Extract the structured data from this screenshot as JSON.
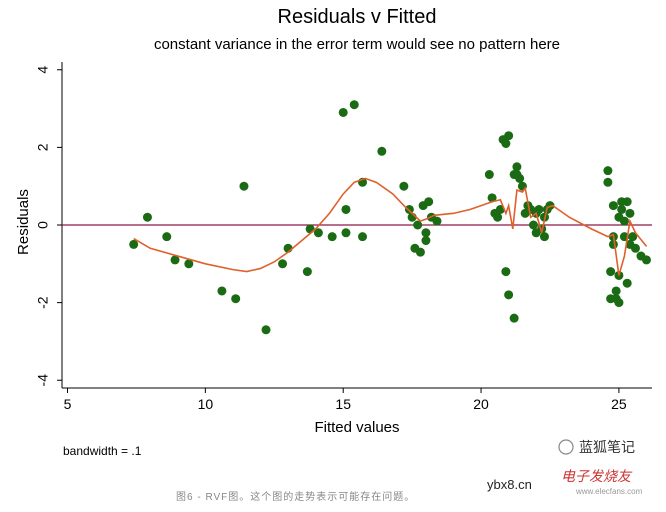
{
  "chart_data": {
    "type": "scatter",
    "title": "Residuals v Fitted",
    "subtitle": "constant variance in the error term would see no pattern here",
    "xlabel": "Fitted values",
    "ylabel": "Residuals",
    "xlim": [
      4.8,
      26.2
    ],
    "ylim": [
      -4.2,
      4.2
    ],
    "xticks": [
      "5",
      "10",
      "15",
      "20",
      "25"
    ],
    "xtick_values": [
      5,
      10,
      15,
      20,
      25
    ],
    "yticks": [
      "-4",
      "-2",
      "0",
      "2",
      "4"
    ],
    "ytick_values": [
      -4,
      -2,
      0,
      2,
      4
    ],
    "reference_line": {
      "y": 0,
      "color": "#8b1a4a"
    },
    "point_color": "#1a6b14",
    "smooth_color": "#e0602a",
    "points": [
      [
        7.4,
        -0.5
      ],
      [
        7.9,
        0.2
      ],
      [
        8.6,
        -0.3
      ],
      [
        8.9,
        -0.9
      ],
      [
        9.4,
        -1.0
      ],
      [
        10.6,
        -1.7
      ],
      [
        11.1,
        -1.9
      ],
      [
        11.4,
        1.0
      ],
      [
        12.2,
        -2.7
      ],
      [
        12.8,
        -1.0
      ],
      [
        13.0,
        -0.6
      ],
      [
        13.7,
        -1.2
      ],
      [
        13.8,
        -0.1
      ],
      [
        14.1,
        -0.2
      ],
      [
        14.6,
        -0.3
      ],
      [
        15.0,
        2.9
      ],
      [
        15.1,
        0.4
      ],
      [
        15.1,
        -0.2
      ],
      [
        15.4,
        3.1
      ],
      [
        15.7,
        1.1
      ],
      [
        15.7,
        -0.3
      ],
      [
        16.4,
        1.9
      ],
      [
        17.2,
        1.0
      ],
      [
        17.4,
        0.4
      ],
      [
        17.5,
        0.2
      ],
      [
        17.6,
        -0.6
      ],
      [
        17.7,
        0.0
      ],
      [
        17.8,
        -0.7
      ],
      [
        17.9,
        0.5
      ],
      [
        18.0,
        -0.2
      ],
      [
        18.0,
        -0.4
      ],
      [
        18.1,
        0.6
      ],
      [
        18.2,
        0.2
      ],
      [
        18.4,
        0.1
      ],
      [
        20.3,
        1.3
      ],
      [
        20.4,
        0.7
      ],
      [
        20.5,
        0.3
      ],
      [
        20.6,
        0.2
      ],
      [
        20.7,
        0.4
      ],
      [
        20.8,
        2.2
      ],
      [
        20.9,
        2.1
      ],
      [
        20.9,
        -1.2
      ],
      [
        21.0,
        2.3
      ],
      [
        21.0,
        -1.8
      ],
      [
        21.2,
        -2.4
      ],
      [
        21.2,
        1.3
      ],
      [
        21.3,
        1.5
      ],
      [
        21.3,
        1.3
      ],
      [
        21.4,
        1.2
      ],
      [
        21.5,
        1.0
      ],
      [
        21.6,
        0.3
      ],
      [
        21.7,
        0.5
      ],
      [
        21.8,
        0.4
      ],
      [
        21.9,
        0.0
      ],
      [
        22.0,
        -0.2
      ],
      [
        22.0,
        0.3
      ],
      [
        22.1,
        0.4
      ],
      [
        22.2,
        -0.1
      ],
      [
        22.3,
        -0.3
      ],
      [
        22.3,
        0.2
      ],
      [
        22.4,
        0.4
      ],
      [
        22.5,
        0.5
      ],
      [
        24.6,
        1.4
      ],
      [
        24.6,
        1.1
      ],
      [
        24.7,
        -1.2
      ],
      [
        24.7,
        -1.9
      ],
      [
        24.8,
        -0.5
      ],
      [
        24.8,
        -0.3
      ],
      [
        24.8,
        0.5
      ],
      [
        24.9,
        -1.7
      ],
      [
        24.9,
        -1.9
      ],
      [
        25.0,
        -1.3
      ],
      [
        25.0,
        -2.0
      ],
      [
        25.0,
        0.2
      ],
      [
        25.1,
        0.6
      ],
      [
        25.1,
        0.4
      ],
      [
        25.2,
        -0.3
      ],
      [
        25.2,
        0.1
      ],
      [
        25.3,
        -1.5
      ],
      [
        25.3,
        0.6
      ],
      [
        25.4,
        -0.5
      ],
      [
        25.4,
        0.3
      ],
      [
        25.5,
        -0.3
      ],
      [
        25.6,
        -0.6
      ],
      [
        25.8,
        -0.8
      ],
      [
        26.0,
        -0.9
      ]
    ],
    "smooth": [
      [
        7.4,
        -0.35
      ],
      [
        8.0,
        -0.6
      ],
      [
        9.0,
        -0.8
      ],
      [
        10.0,
        -1.0
      ],
      [
        11.0,
        -1.15
      ],
      [
        11.5,
        -1.2
      ],
      [
        12.0,
        -1.12
      ],
      [
        12.5,
        -0.95
      ],
      [
        13.0,
        -0.7
      ],
      [
        13.5,
        -0.4
      ],
      [
        14.0,
        -0.1
      ],
      [
        14.5,
        0.3
      ],
      [
        15.0,
        0.8
      ],
      [
        15.4,
        1.1
      ],
      [
        15.8,
        1.2
      ],
      [
        16.2,
        1.1
      ],
      [
        16.8,
        0.8
      ],
      [
        17.2,
        0.5
      ],
      [
        17.5,
        0.3
      ],
      [
        17.8,
        0.1
      ],
      [
        18.0,
        0.15
      ],
      [
        18.3,
        0.25
      ],
      [
        19.0,
        0.3
      ],
      [
        19.6,
        0.4
      ],
      [
        20.0,
        0.5
      ],
      [
        20.4,
        0.6
      ],
      [
        20.7,
        0.65
      ],
      [
        20.9,
        0.3
      ],
      [
        21.0,
        0.5
      ],
      [
        21.15,
        -0.1
      ],
      [
        21.3,
        0.9
      ],
      [
        21.5,
        0.85
      ],
      [
        21.6,
        0.95
      ],
      [
        21.8,
        0.2
      ],
      [
        22.0,
        0.3
      ],
      [
        22.2,
        -0.2
      ],
      [
        22.4,
        0.45
      ],
      [
        22.6,
        0.5
      ],
      [
        23.2,
        0.2
      ],
      [
        24.0,
        -0.1
      ],
      [
        24.6,
        -0.3
      ],
      [
        24.8,
        -0.25
      ],
      [
        25.0,
        -1.3
      ],
      [
        25.2,
        -0.8
      ],
      [
        25.4,
        0.1
      ],
      [
        25.6,
        -0.2
      ],
      [
        26.0,
        -0.55
      ]
    ],
    "note": "bandwidth = .1"
  },
  "caption": "图6 - RVF图。这个图的走势表示可能存在问题。",
  "watermarks": {
    "wechat": "蓝狐笔记",
    "site": "ybx8.cn",
    "elecfans": "电子发烧友",
    "elecfans_url": "www.elecfans.com"
  }
}
